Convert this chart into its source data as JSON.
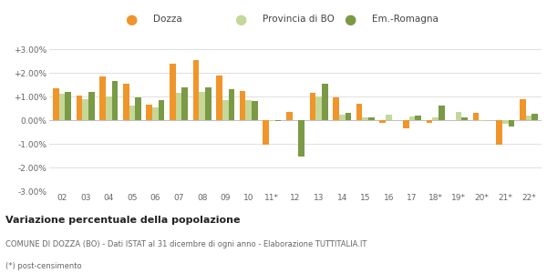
{
  "years": [
    "02",
    "03",
    "04",
    "05",
    "06",
    "07",
    "08",
    "09",
    "10",
    "11*",
    "12",
    "13",
    "14",
    "15",
    "16",
    "17",
    "18*",
    "19*",
    "20*",
    "21*",
    "22*"
  ],
  "dozza": [
    1.35,
    1.05,
    1.85,
    1.55,
    0.65,
    2.4,
    2.55,
    1.9,
    1.25,
    -1.05,
    0.35,
    1.15,
    0.95,
    0.7,
    -0.1,
    -0.35,
    -0.1,
    0.0,
    0.3,
    -1.05,
    0.9
  ],
  "provincia": [
    1.1,
    0.88,
    1.0,
    0.6,
    0.55,
    1.15,
    1.2,
    0.85,
    0.85,
    -0.02,
    0.0,
    1.0,
    0.25,
    0.1,
    0.25,
    0.15,
    0.1,
    0.35,
    -0.05,
    -0.15,
    0.2
  ],
  "emromagna": [
    1.2,
    1.2,
    1.65,
    0.95,
    0.85,
    1.4,
    1.4,
    1.3,
    0.8,
    -0.04,
    -1.55,
    1.55,
    0.3,
    0.1,
    0.0,
    0.18,
    0.6,
    0.1,
    0.0,
    -0.25,
    0.28
  ],
  "color_dozza": "#f0952a",
  "color_provincia": "#c5d89a",
  "color_emromagna": "#7a9a45",
  "bg_color": "#ffffff",
  "grid_color": "#e0e0e0",
  "title_bold": "Variazione percentuale della popolazione",
  "subtitle": "COMUNE DI DOZZA (BO) - Dati ISTAT al 31 dicembre di ogni anno - Elaborazione TUTTITALIA.IT",
  "footnote": "(*) post-censimento",
  "legend_labels": [
    "Dozza",
    "Provincia di BO",
    "Em.-Romagna"
  ],
  "ylim": [
    -3.0,
    3.0
  ],
  "yticks": [
    -3.0,
    -2.0,
    -1.0,
    0.0,
    1.0,
    2.0,
    3.0
  ],
  "ytick_labels": [
    "-3.00%",
    "-2.00%",
    "-1.00%",
    "0.00%",
    "+1.00%",
    "+2.00%",
    "+3.00%"
  ]
}
